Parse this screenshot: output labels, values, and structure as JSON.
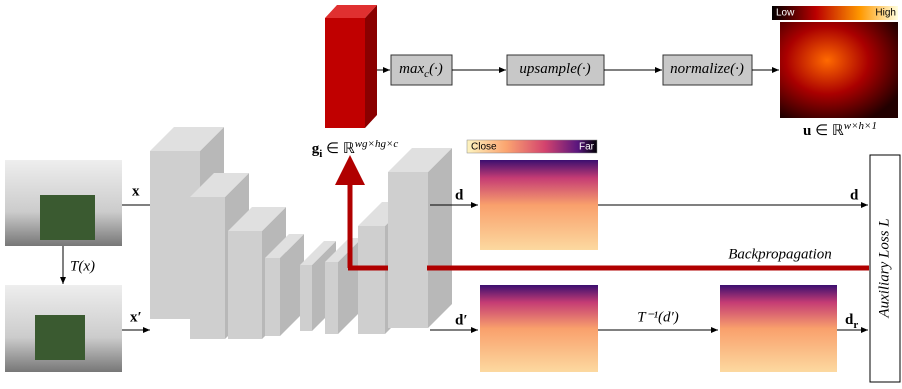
{
  "pipeline": {
    "steps": [
      {
        "name": "max",
        "sub": "c",
        "arg": "(·)"
      },
      {
        "name": "upsample",
        "arg": "(·)"
      },
      {
        "name": "normalize",
        "arg": "(·)"
      }
    ],
    "heatmap": {
      "low": "Low",
      "high": "High",
      "label": {
        "var": "u",
        "rest": " ∈ ℝ",
        "sup": "w×h×1"
      }
    },
    "features": {
      "var": "g",
      "sub": "i",
      "rest": " ∈ ℝ",
      "sup": "wg×hg×c"
    }
  },
  "depth_scale": {
    "close": "Close",
    "far": "Far"
  },
  "inputs": {
    "x": "x",
    "x_prime": "x′",
    "transform": "T(x)"
  },
  "outputs": {
    "d": "d",
    "d_prime": "d′",
    "d_out": "d",
    "inverse": "T⁻¹(d′)",
    "d_r": {
      "var": "d",
      "sub": "r"
    }
  },
  "backprop": "Backpropagation",
  "loss": "Auxiliary Loss L"
}
